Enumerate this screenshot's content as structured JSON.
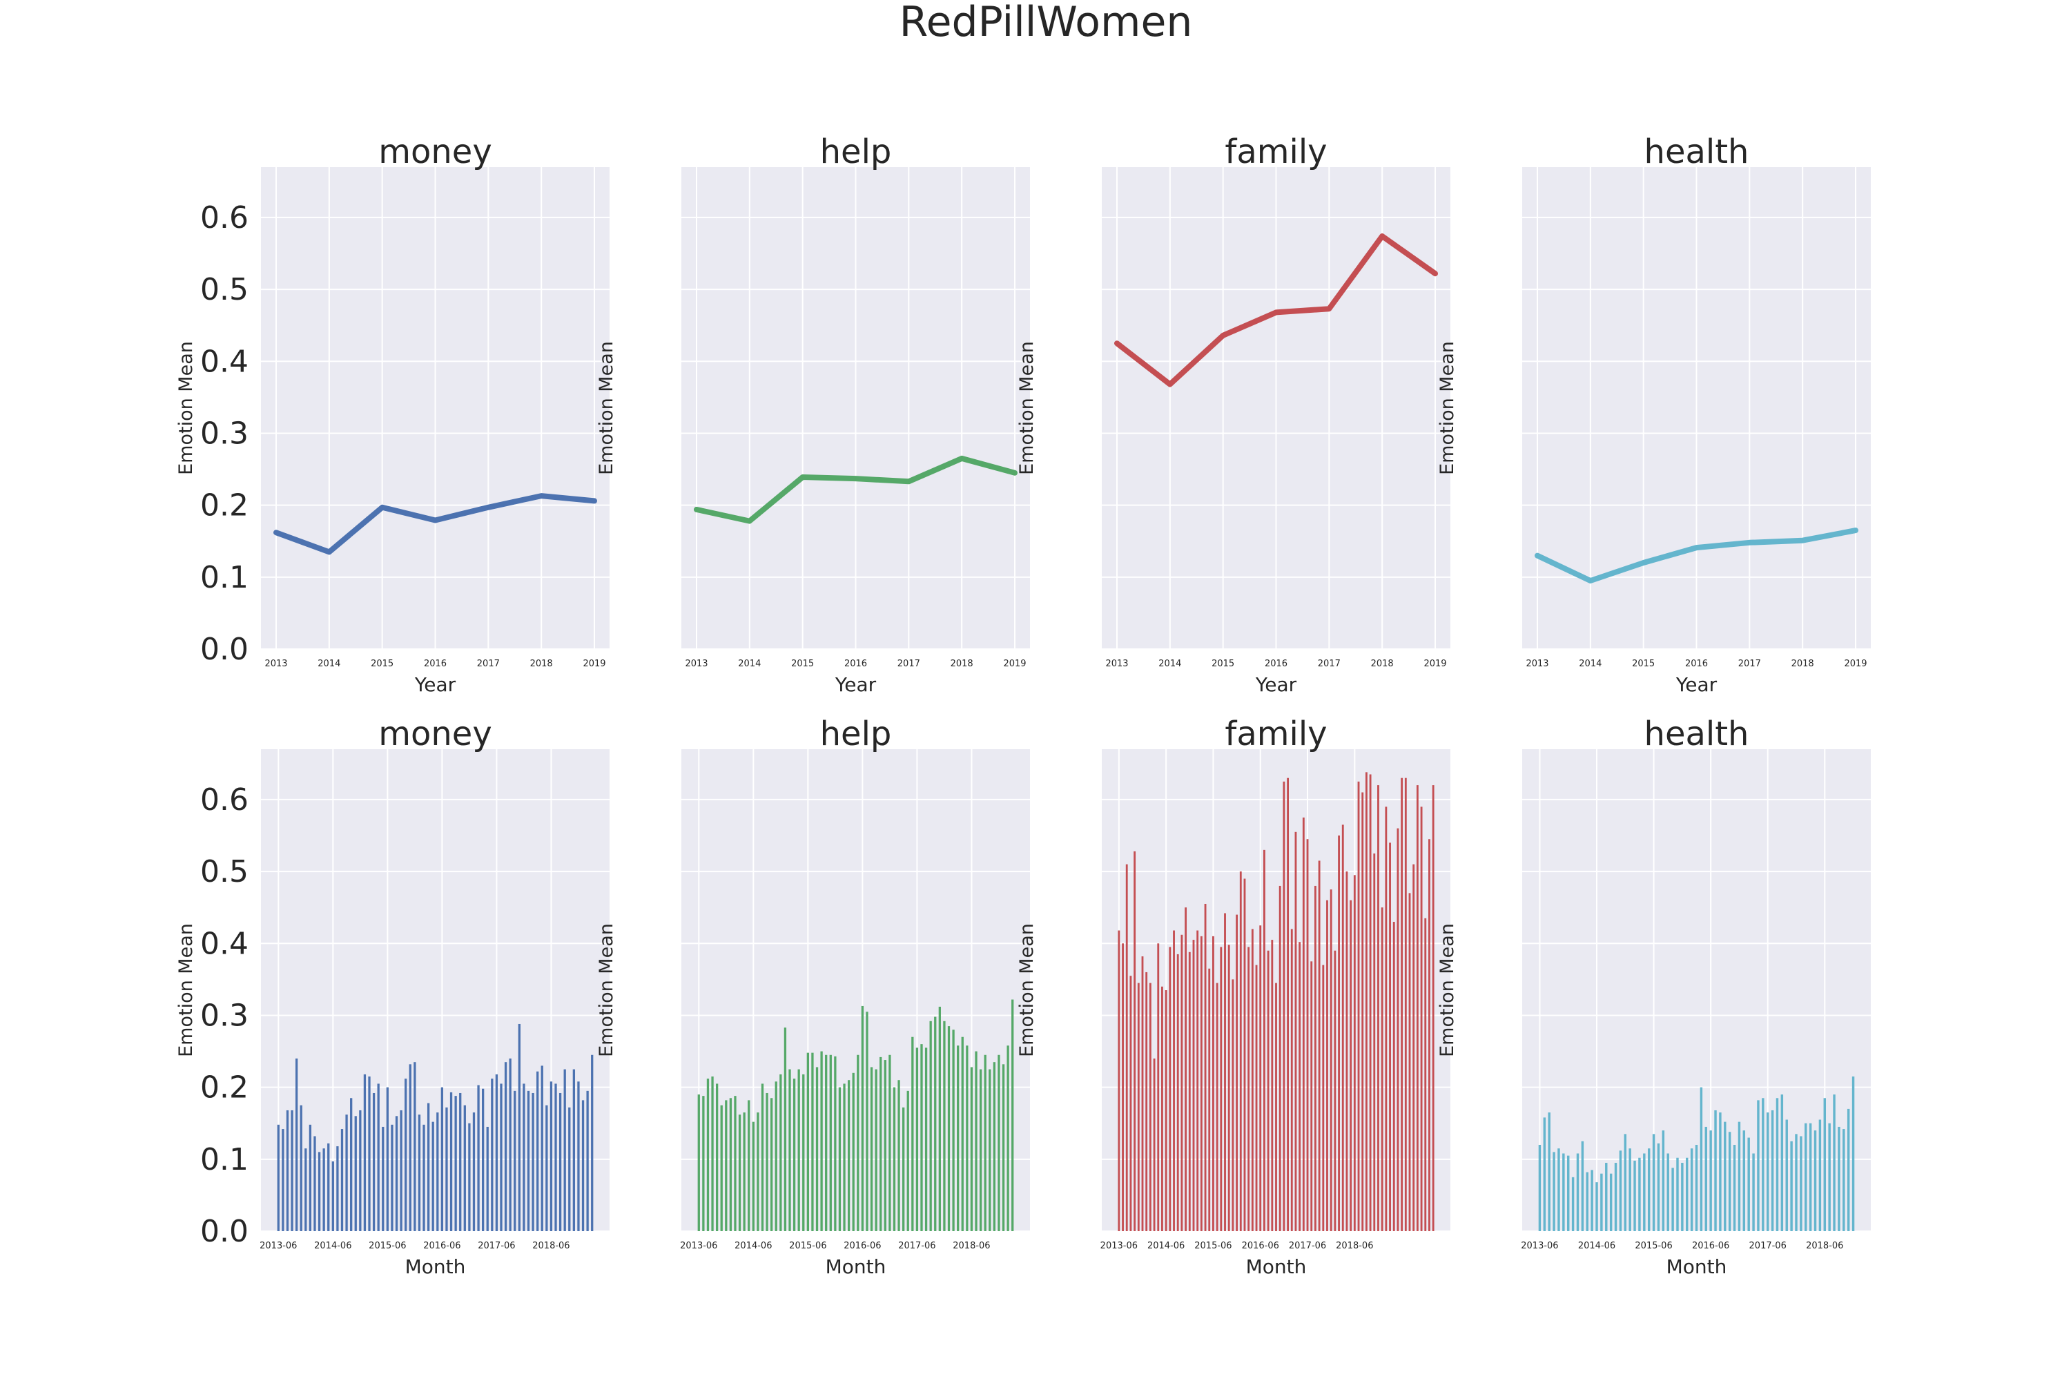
{
  "figure": {
    "title": "RedPillWomen"
  },
  "colors": {
    "money": "#4c72b0",
    "help": "#55a868",
    "family": "#c44e52",
    "health": "#64b5cd",
    "panel_background": "#eaeaf2",
    "grid": "#ffffff",
    "text": "#262626"
  },
  "chart_data": [
    {
      "type": "line",
      "title": "money",
      "xlabel": "Year",
      "ylabel": "Emotion Mean",
      "x": [
        "2013",
        "2014",
        "2015",
        "2016",
        "2017",
        "2018",
        "2019"
      ],
      "values": [
        0.162,
        0.135,
        0.197,
        0.179,
        0.197,
        0.213,
        0.206
      ],
      "ylim": [
        0,
        0.67
      ],
      "yticks": [
        "0.0",
        "0.1",
        "0.2",
        "0.3",
        "0.4",
        "0.5",
        "0.6"
      ],
      "grid": true,
      "color": "#4c72b0"
    },
    {
      "type": "line",
      "title": "help",
      "xlabel": "Year",
      "ylabel": "Emotion Mean",
      "x": [
        "2013",
        "2014",
        "2015",
        "2016",
        "2017",
        "2018",
        "2019"
      ],
      "values": [
        0.194,
        0.178,
        0.239,
        0.237,
        0.233,
        0.265,
        0.245
      ],
      "ylim": [
        0,
        0.67
      ],
      "grid": true,
      "color": "#55a868"
    },
    {
      "type": "line",
      "title": "family",
      "xlabel": "Year",
      "ylabel": "Emotion Mean",
      "x": [
        "2013",
        "2014",
        "2015",
        "2016",
        "2017",
        "2018",
        "2019"
      ],
      "values": [
        0.425,
        0.368,
        0.436,
        0.468,
        0.473,
        0.574,
        0.522
      ],
      "ylim": [
        0,
        0.67
      ],
      "grid": true,
      "color": "#c44e52"
    },
    {
      "type": "line",
      "title": "health",
      "xlabel": "Year",
      "ylabel": "Emotion Mean",
      "x": [
        "2013",
        "2014",
        "2015",
        "2016",
        "2017",
        "2018",
        "2019"
      ],
      "values": [
        0.13,
        0.095,
        0.12,
        0.141,
        0.148,
        0.151,
        0.165
      ],
      "ylim": [
        0,
        0.67
      ],
      "grid": true,
      "color": "#64b5cd"
    },
    {
      "type": "bar",
      "title": "money",
      "xlabel": "Month",
      "ylabel": "Emotion Mean",
      "tick_labels": [
        "2013-06",
        "2014-06",
        "2015-06",
        "2016-06",
        "2017-06",
        "2018-06"
      ],
      "values": [
        0.148,
        0.142,
        0.168,
        0.168,
        0.24,
        0.175,
        0.115,
        0.148,
        0.132,
        0.11,
        0.115,
        0.122,
        0.097,
        0.118,
        0.142,
        0.162,
        0.185,
        0.16,
        0.168,
        0.218,
        0.215,
        0.192,
        0.205,
        0.145,
        0.2,
        0.148,
        0.16,
        0.168,
        0.212,
        0.232,
        0.235,
        0.162,
        0.148,
        0.178,
        0.152,
        0.165,
        0.2,
        0.172,
        0.193,
        0.188,
        0.192,
        0.175,
        0.15,
        0.165,
        0.203,
        0.198,
        0.145,
        0.212,
        0.218,
        0.205,
        0.235,
        0.24,
        0.195,
        0.288,
        0.205,
        0.195,
        0.192,
        0.222,
        0.23,
        0.175,
        0.208,
        0.205,
        0.192,
        0.225,
        0.172,
        0.225,
        0.208,
        0.182,
        0.195,
        0.245
      ],
      "ylim": [
        0,
        0.67
      ],
      "yticks": [
        "0.0",
        "0.1",
        "0.2",
        "0.3",
        "0.4",
        "0.5",
        "0.6"
      ],
      "grid": true,
      "color": "#4c72b0"
    },
    {
      "type": "bar",
      "title": "help",
      "xlabel": "Month",
      "ylabel": "Emotion Mean",
      "tick_labels": [
        "2013-06",
        "2014-06",
        "2015-06",
        "2016-06",
        "2017-06",
        "2018-06"
      ],
      "values": [
        0.19,
        0.188,
        0.212,
        0.215,
        0.205,
        0.175,
        0.182,
        0.185,
        0.188,
        0.162,
        0.165,
        0.182,
        0.152,
        0.165,
        0.205,
        0.192,
        0.185,
        0.208,
        0.218,
        0.283,
        0.225,
        0.212,
        0.225,
        0.218,
        0.248,
        0.248,
        0.228,
        0.25,
        0.245,
        0.245,
        0.243,
        0.2,
        0.205,
        0.21,
        0.22,
        0.245,
        0.313,
        0.305,
        0.228,
        0.225,
        0.242,
        0.238,
        0.245,
        0.2,
        0.21,
        0.172,
        0.195,
        0.27,
        0.255,
        0.26,
        0.255,
        0.292,
        0.298,
        0.312,
        0.292,
        0.285,
        0.28,
        0.258,
        0.27,
        0.258,
        0.228,
        0.25,
        0.225,
        0.245,
        0.225,
        0.235,
        0.245,
        0.232,
        0.258,
        0.322
      ],
      "ylim": [
        0,
        0.67
      ],
      "grid": true,
      "color": "#55a868"
    },
    {
      "type": "bar",
      "title": "family",
      "xlabel": "Month",
      "ylabel": "Emotion Mean",
      "tick_labels": [
        "2013-06",
        "2014-06",
        "2015-06",
        "2016-06",
        "2017-06",
        "2018-06"
      ],
      "values": [
        0.418,
        0.4,
        0.51,
        0.355,
        0.528,
        0.345,
        0.382,
        0.36,
        0.345,
        0.24,
        0.4,
        0.34,
        0.335,
        0.395,
        0.418,
        0.385,
        0.412,
        0.45,
        0.388,
        0.405,
        0.418,
        0.41,
        0.455,
        0.365,
        0.41,
        0.345,
        0.395,
        0.442,
        0.398,
        0.35,
        0.44,
        0.5,
        0.49,
        0.395,
        0.42,
        0.37,
        0.425,
        0.53,
        0.39,
        0.405,
        0.345,
        0.48,
        0.625,
        0.63,
        0.42,
        0.555,
        0.402,
        0.575,
        0.545,
        0.375,
        0.48,
        0.515,
        0.37,
        0.46,
        0.475,
        0.39,
        0.55,
        0.565,
        0.5,
        0.46,
        0.495,
        0.625,
        0.61,
        0.638,
        0.635,
        0.525,
        0.62,
        0.45,
        0.59,
        0.54,
        0.43,
        0.56,
        0.63,
        0.63,
        0.47,
        0.51,
        0.62,
        0.59,
        0.435,
        0.545,
        0.62
      ],
      "ylim": [
        0,
        0.67
      ],
      "grid": true,
      "color": "#c44e52"
    },
    {
      "type": "bar",
      "title": "health",
      "xlabel": "Month",
      "ylabel": "Emotion Mean",
      "tick_labels": [
        "2013-06",
        "2014-06",
        "2015-06",
        "2016-06",
        "2017-06",
        "2018-06"
      ],
      "values": [
        0.12,
        0.158,
        0.165,
        0.11,
        0.115,
        0.108,
        0.105,
        0.075,
        0.108,
        0.125,
        0.082,
        0.085,
        0.068,
        0.08,
        0.095,
        0.08,
        0.095,
        0.112,
        0.135,
        0.115,
        0.098,
        0.102,
        0.108,
        0.115,
        0.135,
        0.122,
        0.14,
        0.108,
        0.088,
        0.102,
        0.095,
        0.102,
        0.115,
        0.12,
        0.2,
        0.145,
        0.14,
        0.168,
        0.165,
        0.152,
        0.138,
        0.12,
        0.152,
        0.14,
        0.13,
        0.108,
        0.182,
        0.185,
        0.165,
        0.168,
        0.185,
        0.19,
        0.155,
        0.125,
        0.135,
        0.132,
        0.15,
        0.15,
        0.14,
        0.155,
        0.185,
        0.15,
        0.19,
        0.145,
        0.142,
        0.17,
        0.215
      ],
      "ylim": [
        0,
        0.67
      ],
      "grid": true,
      "color": "#64b5cd"
    }
  ]
}
